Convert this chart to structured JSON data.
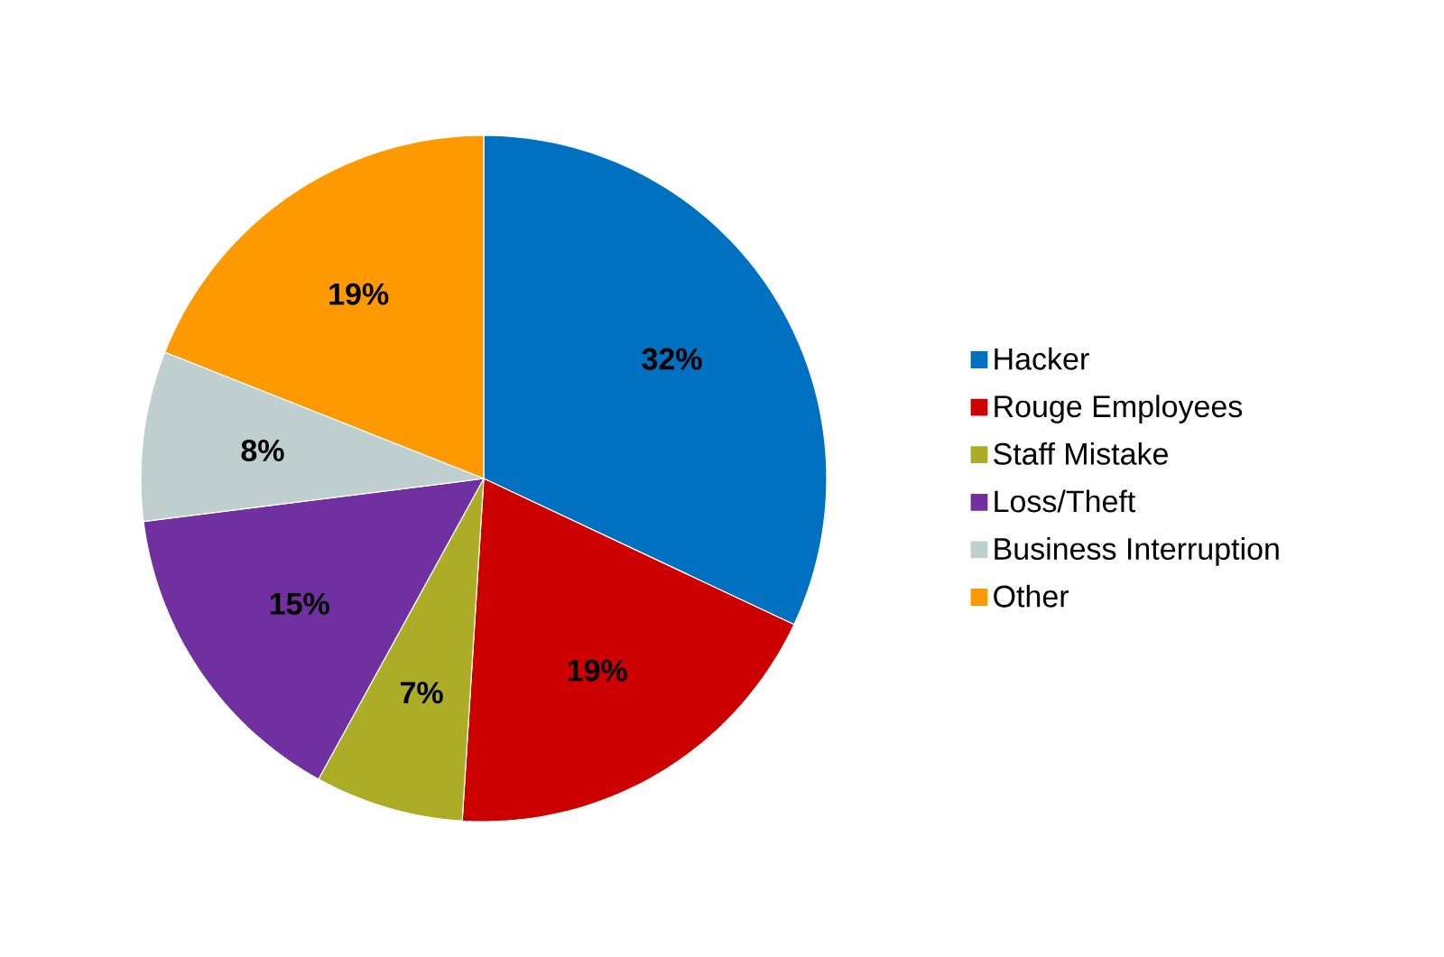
{
  "chart_data": {
    "type": "pie",
    "categories": [
      "Hacker",
      "Rouge Employees",
      "Staff Mistake",
      "Loss/Theft",
      "Business Interruption",
      "Other"
    ],
    "values": [
      32,
      19,
      7,
      15,
      8,
      19
    ],
    "colors": [
      "#0070c0",
      "#cc0000",
      "#acac26",
      "#7030a0",
      "#bfcfcf",
      "#ff9900"
    ],
    "value_labels": [
      "32%",
      "19%",
      "7%",
      "15%",
      "8%",
      "19%"
    ],
    "legend": "right"
  }
}
